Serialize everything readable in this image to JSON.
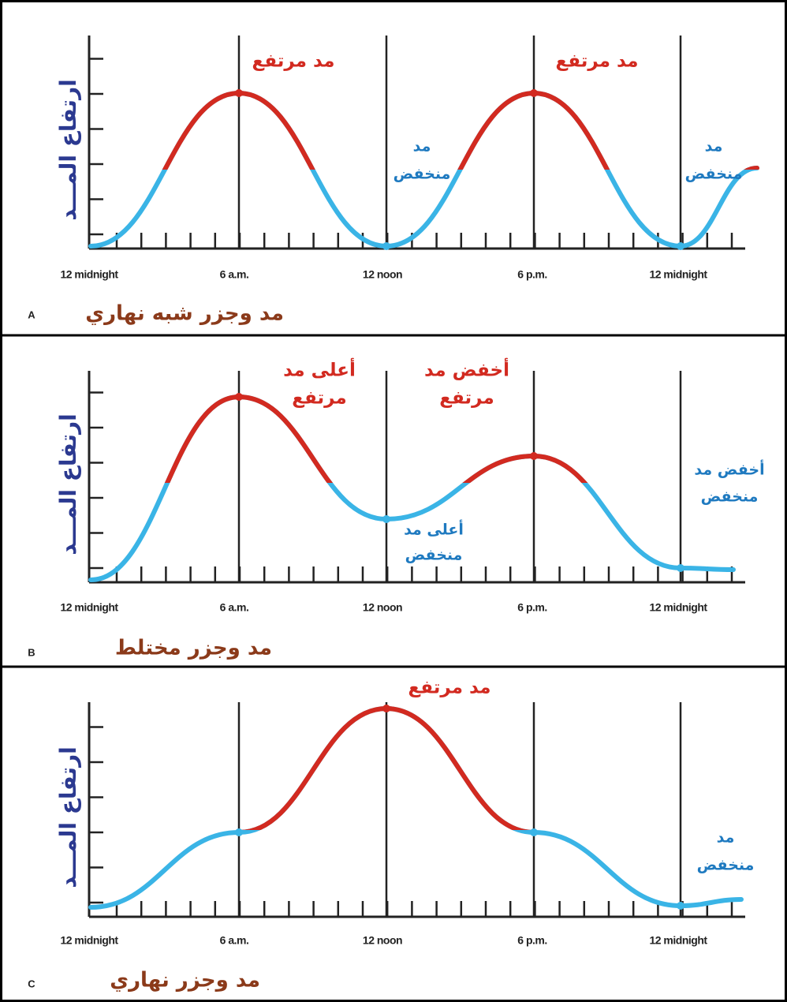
{
  "panels": [
    {
      "letter": "A",
      "title": "مد وجزر شبه نهاري",
      "y_axis_label": "ارتفاع المـــد",
      "x_labels": [
        "12 midnight",
        "6 a.m.",
        "12 noon",
        "6 p.m.",
        "12 midnight"
      ],
      "annotations": [
        {
          "lines": [
            "مد مرتفع"
          ]
        },
        {
          "lines": [
            "مد مرتفع"
          ]
        },
        {
          "lines": [
            "مد",
            "منخفض"
          ]
        },
        {
          "lines": [
            "مد",
            "منخفض"
          ]
        }
      ]
    },
    {
      "letter": "B",
      "title": "مد وجزر مختلط",
      "y_axis_label": "ارتفاع المـــد",
      "x_labels": [
        "12 midnight",
        "6 a.m.",
        "12 noon",
        "6 p.m.",
        "12 midnight"
      ],
      "annotations": [
        {
          "lines": [
            "أعلى مد",
            "مرتفع"
          ]
        },
        {
          "lines": [
            "أخفض مد",
            "مرتفع"
          ]
        },
        {
          "lines": [
            "أعلى مد",
            "منخفض"
          ]
        },
        {
          "lines": [
            "أخفض مد",
            "منخفض"
          ]
        }
      ]
    },
    {
      "letter": "C",
      "title": "مد وجزر نهاري",
      "y_axis_label": "ارتفاع المـــد",
      "x_labels": [
        "12 midnight",
        "6 a.m.",
        "12 noon",
        "6 p.m.",
        "12 midnight"
      ],
      "annotations": [
        {
          "lines": [
            "مد مرتفع"
          ]
        },
        {
          "lines": [
            "مد",
            "منخفض"
          ]
        }
      ]
    }
  ]
}
